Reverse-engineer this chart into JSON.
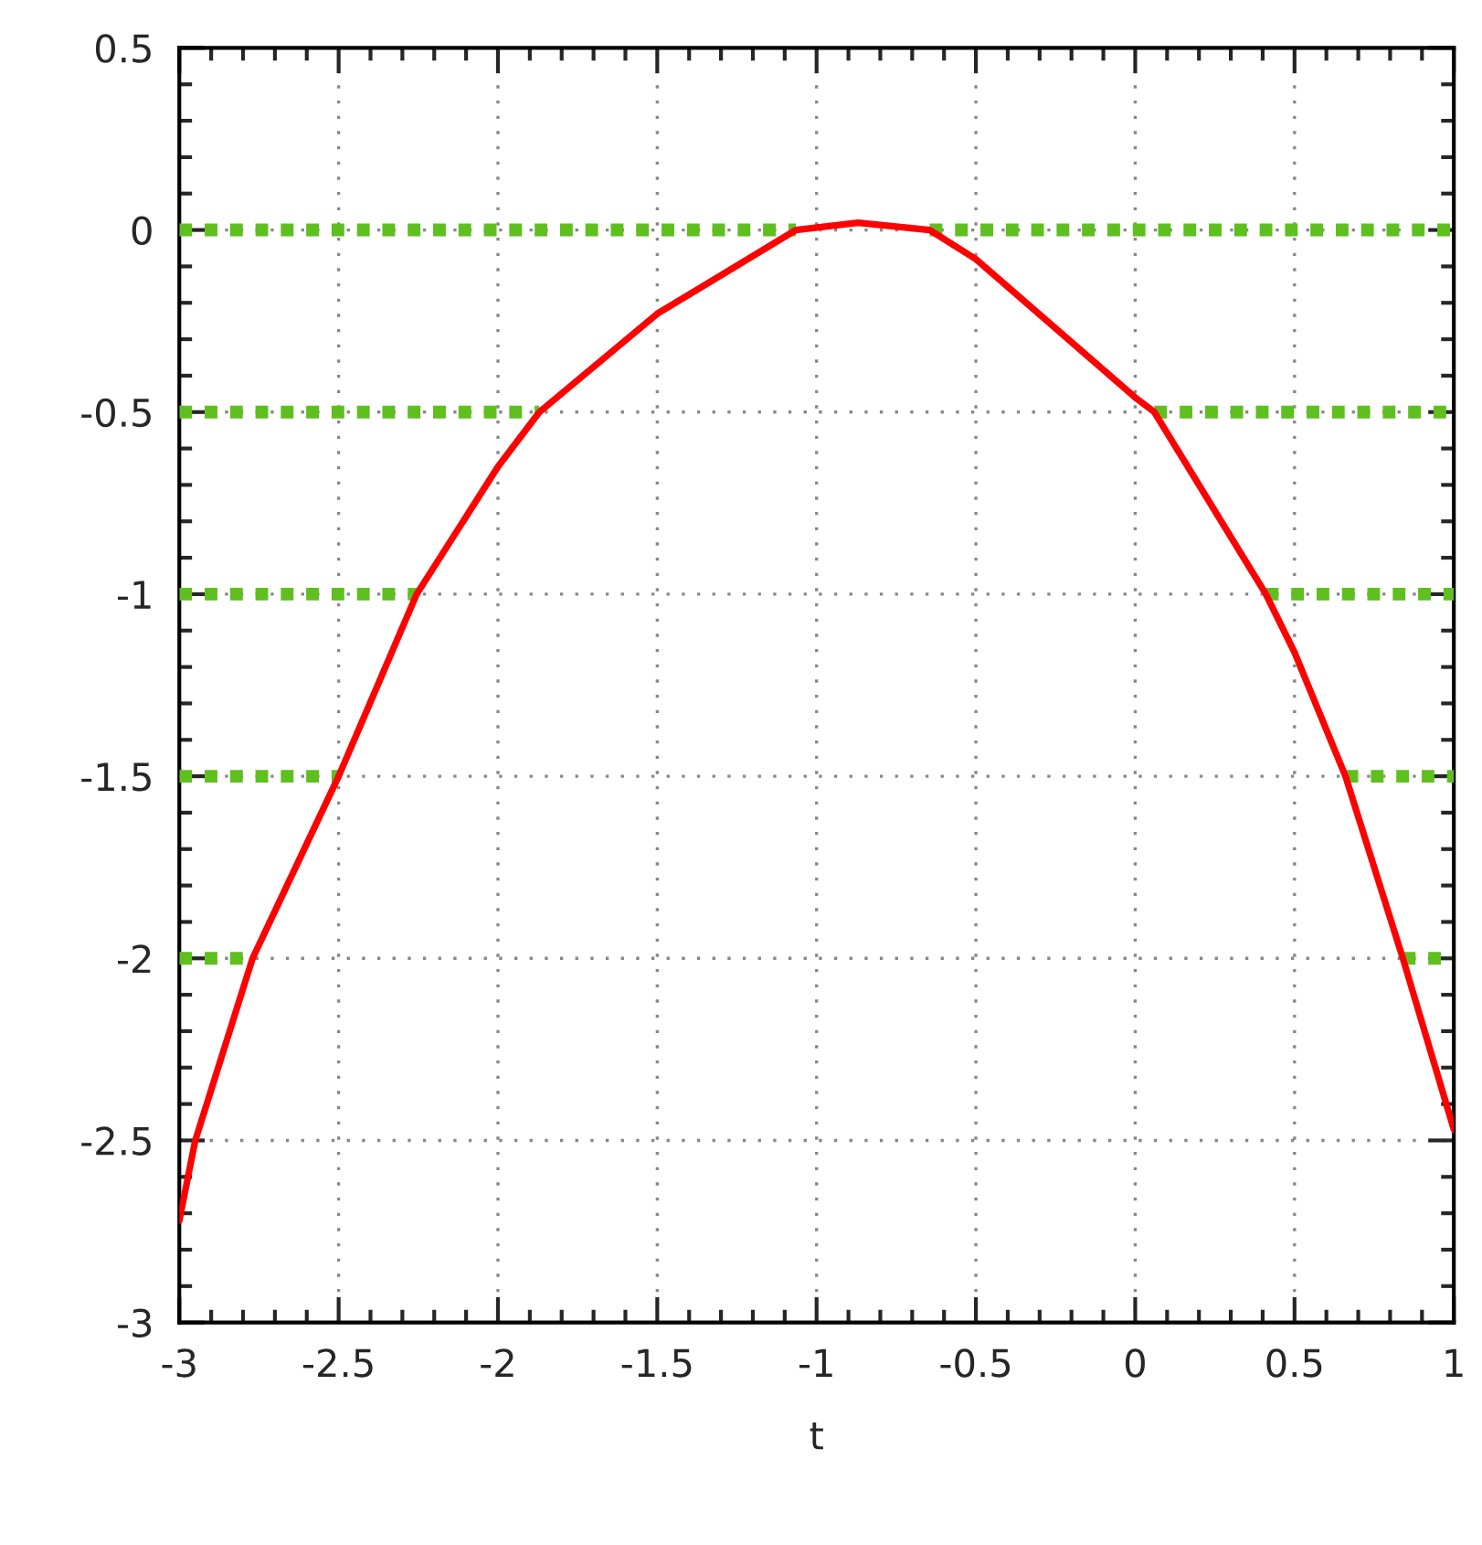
{
  "chart_data": {
    "type": "line",
    "xlabel": "t",
    "xlim": [
      -3,
      1
    ],
    "xticks": [
      -3,
      -2.5,
      -2,
      -1.5,
      -1,
      -0.5,
      0,
      0.5,
      1
    ],
    "ylim": [
      -3,
      0.5
    ],
    "yticks": [
      -3,
      -2.5,
      -2,
      -1.5,
      -1,
      -0.5,
      0,
      0.5
    ],
    "grid": true,
    "legend": false,
    "series": [
      {
        "color": "#ff0000",
        "line_style": "solid",
        "x": [
          -3,
          -2.95,
          -2.77,
          -2.5,
          -2.255,
          -2,
          -1.87,
          -1.5,
          -1.065,
          -0.87,
          -0.645,
          -0.5,
          0,
          0.06,
          0.41,
          0.5,
          0.66,
          0.84,
          1
        ],
        "values": [
          -2.72,
          -2.5,
          -2,
          -1.5,
          -1,
          -0.65,
          -0.5,
          -0.23,
          0,
          0.02,
          0,
          -0.08,
          -0.46,
          -0.5,
          -1,
          -1.16,
          -1.5,
          -2,
          -2.47
        ]
      },
      {
        "color": "#5fbf1f",
        "line_style": "dotted",
        "x": [
          -3,
          -1.065,
          -0.87,
          -0.645,
          1
        ],
        "values": [
          0,
          0,
          null,
          0,
          0
        ]
      },
      {
        "color": "#5fbf1f",
        "line_style": "dotted",
        "x": [
          -3,
          -1.87,
          -0.87,
          0.06,
          1
        ],
        "values": [
          -0.5,
          -0.5,
          null,
          -0.5,
          -0.5
        ]
      },
      {
        "color": "#5fbf1f",
        "line_style": "dotted",
        "x": [
          -3,
          -2.255,
          -0.87,
          0.41,
          1
        ],
        "values": [
          -1,
          -1,
          null,
          -1,
          -1
        ]
      },
      {
        "color": "#5fbf1f",
        "line_style": "dotted",
        "x": [
          -3,
          -2.5,
          -0.87,
          0.66,
          1
        ],
        "values": [
          -1.5,
          -1.5,
          null,
          -1.5,
          -1.5
        ]
      },
      {
        "color": "#5fbf1f",
        "line_style": "dotted",
        "x": [
          -3,
          -2.77,
          -0.87,
          0.84,
          1
        ],
        "values": [
          -2,
          -2,
          null,
          -2,
          -2
        ]
      }
    ]
  }
}
